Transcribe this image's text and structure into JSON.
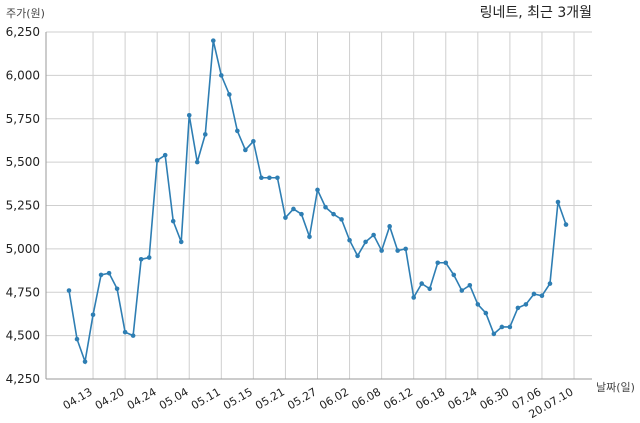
{
  "chart_data": {
    "type": "line",
    "title": "링네트, 최근 3개월",
    "ylabel": "주가(원)",
    "xlabel": "날짜(일)",
    "ylim": [
      4250,
      6250
    ],
    "yticks": [
      4250,
      4500,
      4750,
      5000,
      5250,
      5500,
      5750,
      6000,
      6250
    ],
    "ytick_labels": [
      "4,250",
      "4,500",
      "4,750",
      "5,000",
      "5,250",
      "5,500",
      "5,750",
      "6,000",
      "6,250"
    ],
    "xtick_labels": [
      "04.13",
      "04.20",
      "04.24",
      "05.04",
      "05.11",
      "05.15",
      "05.21",
      "05.27",
      "06.02",
      "06.08",
      "06.12",
      "06.18",
      "06.24",
      "06.30",
      "07.06",
      "20.07.10"
    ],
    "xtick_indices": [
      3,
      7,
      11,
      15,
      19,
      23,
      27,
      31,
      35,
      39,
      43,
      47,
      51,
      55,
      59,
      63
    ],
    "grid": true,
    "color": "#2e7eb3",
    "values": [
      4760,
      4480,
      4350,
      4620,
      4850,
      4860,
      4770,
      4520,
      4500,
      4940,
      4950,
      5510,
      5540,
      5160,
      5040,
      5770,
      5500,
      5660,
      6200,
      6000,
      5890,
      5680,
      5570,
      5620,
      5410,
      5410,
      5410,
      5180,
      5230,
      5200,
      5070,
      5340,
      5240,
      5200,
      5170,
      5050,
      4960,
      5040,
      5080,
      4990,
      5130,
      4990,
      5000,
      4720,
      4800,
      4770,
      4920,
      4920,
      4850,
      4760,
      4790,
      4680,
      4630,
      4510,
      4550,
      4550,
      4660,
      4680,
      4740,
      4730,
      4800,
      5270,
      5140
    ]
  }
}
